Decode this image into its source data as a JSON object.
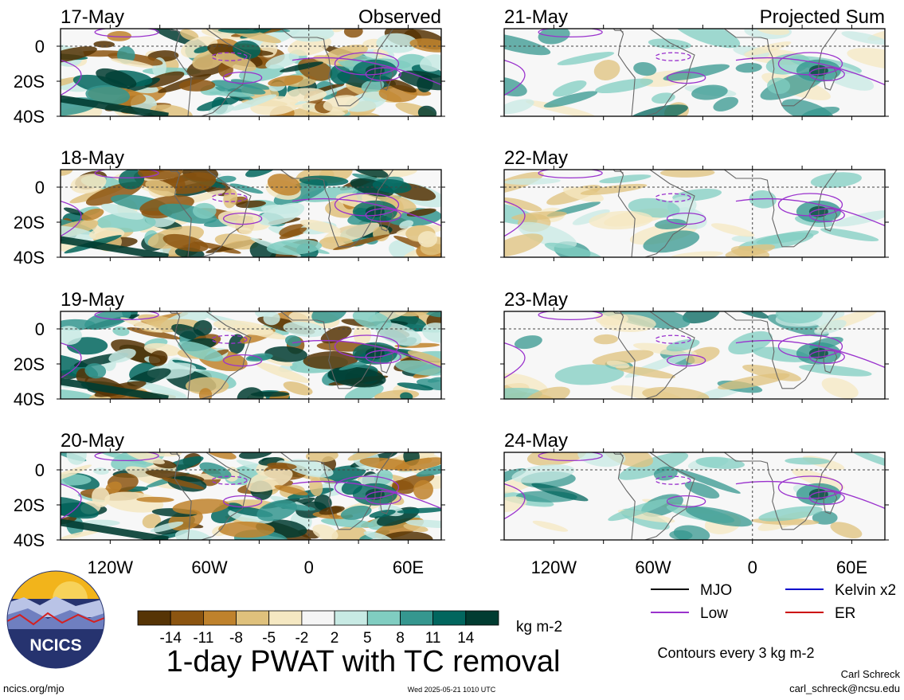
{
  "chart_data": {
    "type": "heatmap",
    "title": "1-day PWAT with TC removal",
    "colorbar": {
      "unit": "kg m-2",
      "tick_labels": [
        "-14",
        "-11",
        "-8",
        "-5",
        "-2",
        "2",
        "5",
        "8",
        "11",
        "14"
      ],
      "colors": [
        "#563405",
        "#8c5510",
        "#bf822c",
        "#dfc17c",
        "#f5e8c2",
        "#f5f5f5",
        "#c8eae4",
        "#80cdc1",
        "#35978f",
        "#01665e",
        "#013c31"
      ]
    },
    "columns": [
      {
        "header": "Observed",
        "panels": [
          {
            "date": "17-May"
          },
          {
            "date": "18-May"
          },
          {
            "date": "19-May"
          },
          {
            "date": "20-May"
          }
        ]
      },
      {
        "header": "Projected Sum",
        "panels": [
          {
            "date": "21-May"
          },
          {
            "date": "22-May"
          },
          {
            "date": "23-May"
          },
          {
            "date": "24-May"
          }
        ]
      }
    ],
    "y_axis": {
      "tick_labels": [
        "0",
        "20S",
        "40S"
      ],
      "ylim": [
        -40,
        10
      ]
    },
    "x_axis": {
      "tick_labels": [
        "120W",
        "60W",
        "0",
        "60E"
      ],
      "xlim": [
        -150,
        80
      ]
    },
    "legend": {
      "items": [
        {
          "label": "MJO",
          "color": "#000000"
        },
        {
          "label": "Kelvin x2",
          "color": "#0000cc"
        },
        {
          "label": "Low",
          "color": "#9a32cd"
        },
        {
          "label": "ER",
          "color": "#cc0000"
        }
      ],
      "contour_note": "Contours every 3 kg m-2"
    }
  },
  "footer": {
    "site": "ncics.org/mjo",
    "timestamp": "Wed 2025-05-21 1010 UTC",
    "author": "Carl Schreck",
    "email": "carl_schreck@ncsu.edu"
  },
  "logo": {
    "text": "NCICS"
  }
}
